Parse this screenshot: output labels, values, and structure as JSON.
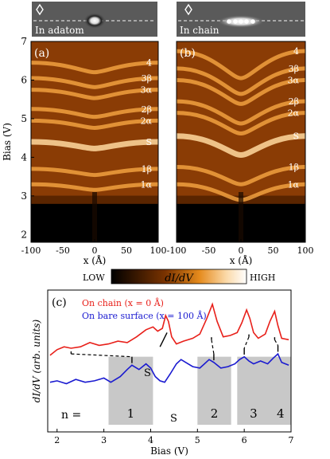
{
  "panel_a": {
    "inset_label": "In adatom",
    "inset_marker": "diamond-marker",
    "letter": "(a)",
    "ylabel": "Bias (V)",
    "xlabel": "x (Å)",
    "yticks": [
      "2",
      "3",
      "4",
      "5",
      "6",
      "7"
    ],
    "xticks": [
      "-100",
      "-50",
      "0",
      "50",
      "100"
    ],
    "peak_labels": [
      "4",
      "3β",
      "3α",
      "2β",
      "2α",
      "S",
      "1β",
      "1α"
    ]
  },
  "panel_b": {
    "inset_label": "In chain",
    "inset_marker": "diamond-marker",
    "letter": "(b)",
    "xlabel": "x (Å)",
    "xticks": [
      "-100",
      "-50",
      "0",
      "50",
      "100"
    ],
    "peak_labels": [
      "4",
      "3β",
      "3α",
      "2β",
      "2α",
      "S",
      "1β",
      "1α"
    ]
  },
  "colorbar": {
    "low": "LOW",
    "mid": "dI/dV",
    "high": "HIGH"
  },
  "panel_c": {
    "letter": "(c)",
    "legend_chain": "On chain (x = 0 Å)",
    "legend_bare": "On bare surface (x = 100 Å)",
    "ylabel": "dI/dV (arb. units)",
    "xlabel": "Bias (V)",
    "xticks": [
      "2",
      "3",
      "4",
      "5",
      "6",
      "7"
    ],
    "s_label_upper": "S",
    "s_label_lower": "S",
    "n_label": "n =",
    "box_labels": [
      "1",
      "2",
      "3",
      "4"
    ],
    "colors": {
      "chain": "#e8201a",
      "bare": "#1a1ad0",
      "box": "#c8c8c8"
    }
  },
  "chart_data": [
    {
      "type": "heatmap",
      "xlabel": "x (Å)",
      "ylabel": "Bias (V)",
      "xlim": [
        -100,
        100
      ],
      "ylim": [
        1.8,
        7
      ],
      "note_levels": {
        "4": 6.45,
        "3β": 6.05,
        "3α": 5.75,
        "2β": 5.25,
        "2α": 4.95,
        "S": 4.4,
        "1β": 3.7,
        "1α": 3.3
      }
    },
    {
      "type": "heatmap",
      "xlabel": "x (Å)",
      "xlim": [
        -100,
        100
      ],
      "ylim": [
        1.8,
        7
      ],
      "note_levels": {
        "4": 6.75,
        "3β": 6.3,
        "3α": 6.0,
        "2β": 5.45,
        "2α": 5.15,
        "S": 4.55,
        "1β": 3.75,
        "1α": 3.3
      }
    },
    {
      "type": "line",
      "xlabel": "Bias (V)",
      "ylabel": "dI/dV (arb. units)",
      "xlim": [
        1.8,
        7
      ],
      "series": [
        {
          "name": "On chain (x = 0 Å)",
          "x": [
            1.85,
            2.0,
            2.15,
            2.3,
            2.5,
            2.7,
            2.9,
            3.1,
            3.3,
            3.5,
            3.7,
            3.9,
            4.05,
            4.15,
            4.25,
            4.32,
            4.38,
            4.45,
            4.55,
            4.7,
            4.9,
            5.05,
            5.2,
            5.32,
            5.42,
            5.55,
            5.7,
            5.85,
            5.95,
            6.05,
            6.12,
            6.2,
            6.3,
            6.45,
            6.55,
            6.65,
            6.72,
            6.8,
            6.95
          ],
          "y": [
            0.54,
            0.58,
            0.6,
            0.59,
            0.6,
            0.63,
            0.61,
            0.62,
            0.64,
            0.63,
            0.67,
            0.72,
            0.74,
            0.71,
            0.73,
            0.82,
            0.78,
            0.67,
            0.62,
            0.64,
            0.66,
            0.69,
            0.8,
            0.9,
            0.78,
            0.67,
            0.68,
            0.7,
            0.77,
            0.86,
            0.8,
            0.7,
            0.66,
            0.69,
            0.78,
            0.85,
            0.75,
            0.66,
            0.65
          ]
        },
        {
          "name": "On bare surface (x = 100 Å)",
          "x": [
            1.85,
            2.0,
            2.2,
            2.4,
            2.6,
            2.8,
            3.0,
            3.15,
            3.35,
            3.5,
            3.6,
            3.75,
            3.9,
            4.0,
            4.1,
            4.2,
            4.3,
            4.42,
            4.55,
            4.65,
            4.75,
            4.9,
            5.05,
            5.15,
            5.25,
            5.35,
            5.5,
            5.65,
            5.8,
            5.9,
            6.0,
            6.1,
            6.2,
            6.35,
            6.5,
            6.62,
            6.72,
            6.8,
            6.95
          ],
          "y": [
            0.35,
            0.36,
            0.34,
            0.37,
            0.35,
            0.36,
            0.38,
            0.35,
            0.39,
            0.44,
            0.47,
            0.44,
            0.48,
            0.45,
            0.39,
            0.36,
            0.35,
            0.41,
            0.48,
            0.51,
            0.49,
            0.46,
            0.45,
            0.48,
            0.51,
            0.49,
            0.45,
            0.46,
            0.48,
            0.51,
            0.53,
            0.5,
            0.48,
            0.5,
            0.48,
            0.52,
            0.55,
            0.49,
            0.47
          ]
        }
      ],
      "boxes": [
        {
          "label": "1",
          "x0": 3.1,
          "x1": 4.05
        },
        {
          "label": "2",
          "x0": 5.0,
          "x1": 5.72
        },
        {
          "label": "3",
          "x0": 5.85,
          "x1": 6.55
        },
        {
          "label": "4",
          "x0": 6.55,
          "x1": 7.0
        }
      ]
    }
  ]
}
